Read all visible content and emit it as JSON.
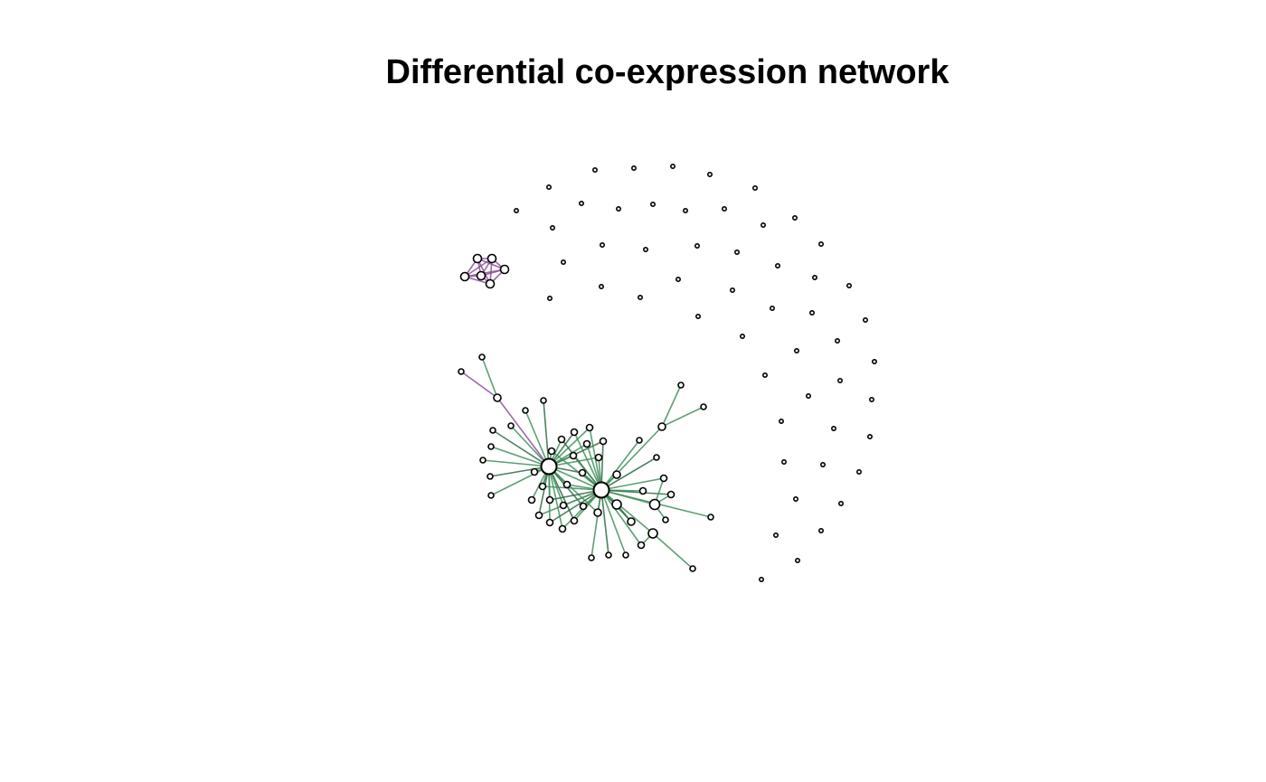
{
  "title": "Differential co-expression network",
  "colors": {
    "background": "#ffffff",
    "node_fill": "#ffffff",
    "node_stroke": "#000000",
    "edge_positive": "#3f8f5a",
    "edge_positive_dark": "#2e6b45",
    "edge_negative": "#8a4f9a"
  },
  "legend": "none"
}
